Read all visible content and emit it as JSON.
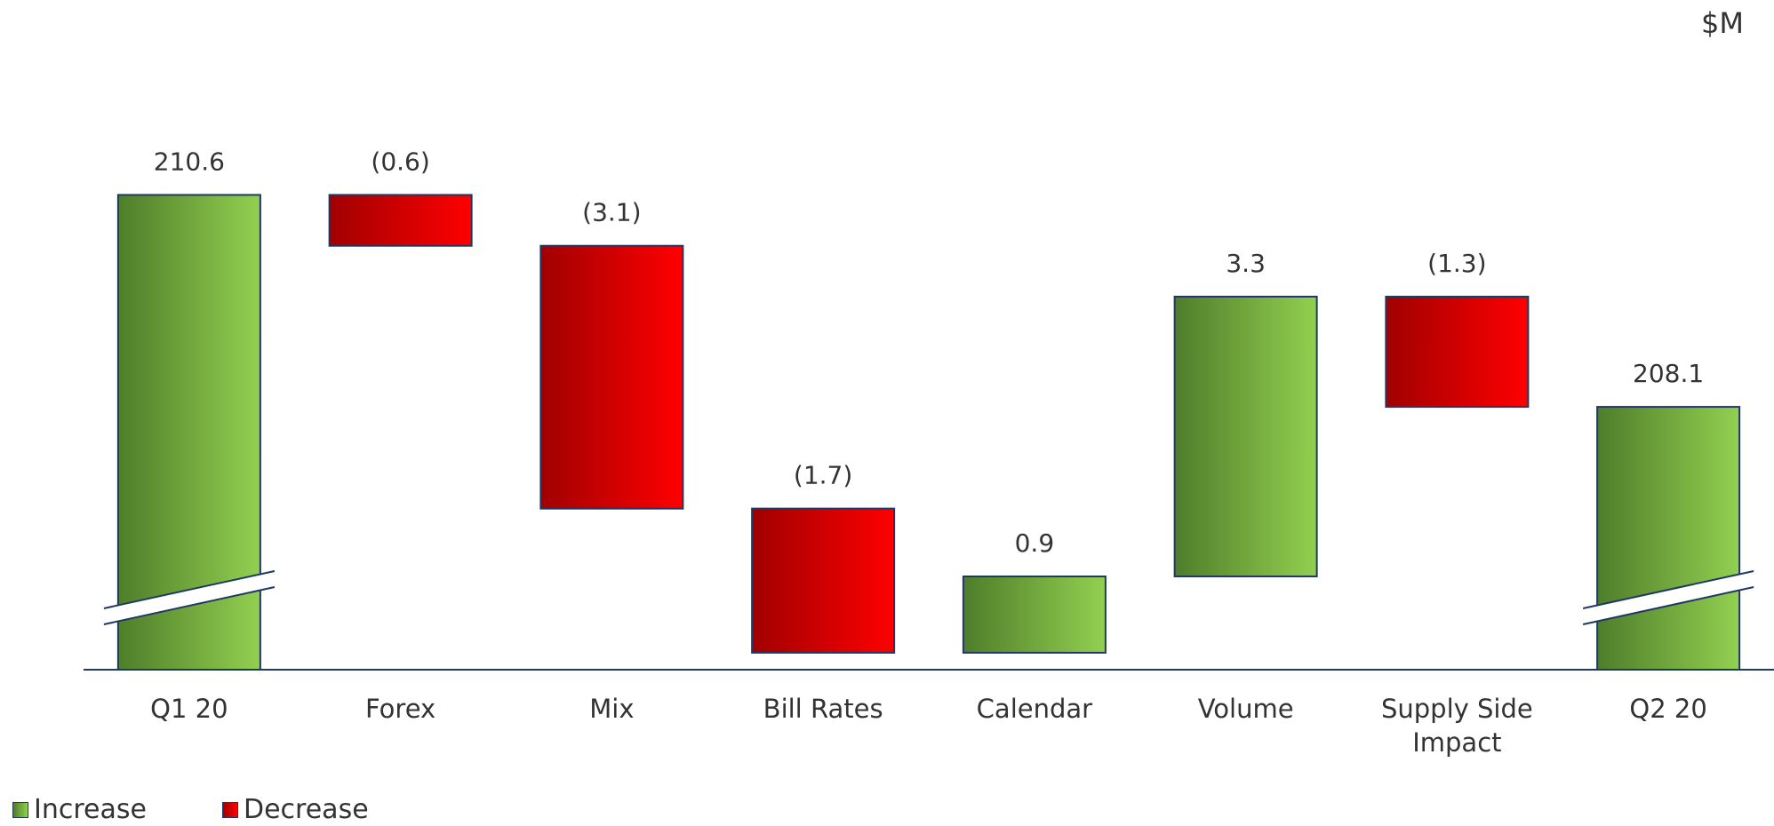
{
  "chart_data": {
    "type": "waterfall",
    "unit": "$M",
    "categories": [
      "Q1 20",
      "Forex",
      "Mix",
      "Bill Rates",
      "Calendar",
      "Volume",
      "Supply Side Impact",
      "Q2 20"
    ],
    "values": [
      210.6,
      -0.6,
      -3.1,
      -1.7,
      0.9,
      3.3,
      -1.3,
      208.1
    ],
    "value_labels": [
      "210.6",
      "(0.6)",
      "(3.1)",
      "(1.7)",
      "0.9",
      "3.3",
      "(1.3)",
      "208.1"
    ],
    "ylim": [
      205,
      211.6
    ],
    "legend": [
      {
        "name": "Increase",
        "color": "#92d050",
        "shade": "#4f7d2a"
      },
      {
        "name": "Decrease",
        "color": "#ff0000",
        "shade": "#a00000"
      }
    ]
  }
}
